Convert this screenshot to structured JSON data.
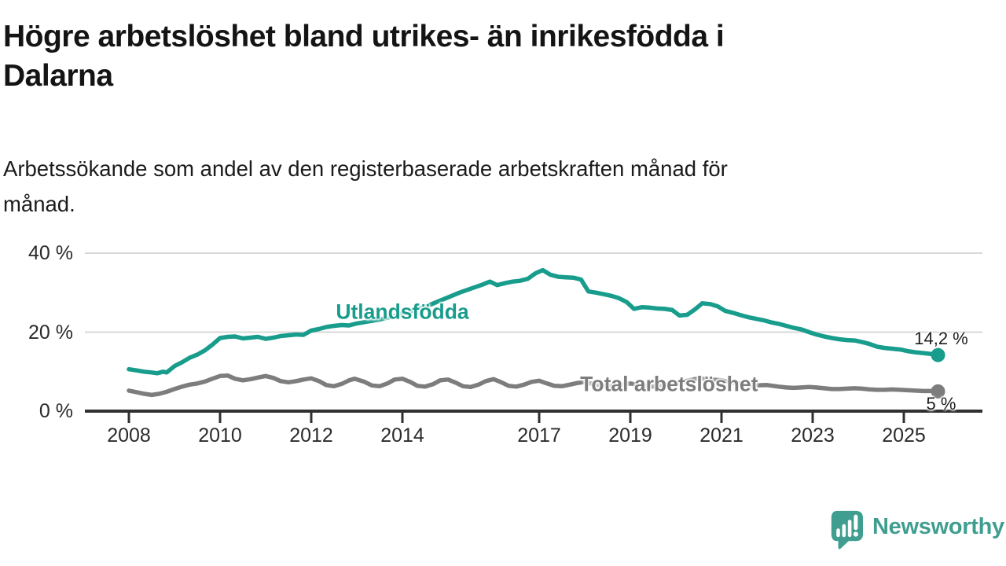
{
  "header": {
    "title_lines": [
      "Högre arbetslöshet bland utrikes- än inrikesfödda i",
      "Dalarna"
    ],
    "subtitle_lines": [
      "Arbetssökande som andel av den registerbaserade arbetskraften månad för",
      "månad."
    ]
  },
  "branding": {
    "logo_text": "Newsworthy",
    "logo_color": "#3f9e8f",
    "logo_icon": "speech-bubble-bar-chart-exclamation-icon"
  },
  "colors": {
    "background": "#ffffff",
    "axis": "#303030",
    "gridline": "#d8d8d8",
    "tick_label": "#2b2b2b",
    "teal": "#189c8c",
    "gray": "#7d7d7d"
  },
  "chart_data": {
    "type": "line",
    "title": "Högre arbetslöshet bland utrikes- än inrikesfödda i Dalarna",
    "subtitle": "Arbetssökande som andel av den registerbaserade arbetskraften månad för månad.",
    "unit": "%",
    "xlim": [
      2007.75,
      2026.1
    ],
    "ylim": [
      0,
      45
    ],
    "grid": "horizontal",
    "legend": "inline-labels",
    "y_ticks": [
      {
        "value": 0,
        "label": "0 %"
      },
      {
        "value": 20,
        "label": "20 %"
      },
      {
        "value": 40,
        "label": "40 %"
      }
    ],
    "x_ticks": [
      {
        "value": 2008,
        "label": "2008"
      },
      {
        "value": 2010,
        "label": "2010"
      },
      {
        "value": 2012,
        "label": "2012"
      },
      {
        "value": 2014,
        "label": "2014"
      },
      {
        "value": 2017,
        "label": "2017"
      },
      {
        "value": 2019,
        "label": "2019"
      },
      {
        "value": 2021,
        "label": "2021"
      },
      {
        "value": 2023,
        "label": "2023"
      },
      {
        "value": 2025,
        "label": "2025"
      }
    ],
    "series": [
      {
        "name": "Utlandsfödda",
        "color": "#189c8c",
        "end_label": "14,2 %",
        "end_value": 14.2,
        "label_pos": {
          "x": 2014.0,
          "y": 25.0
        },
        "end_label_offset": [
          4,
          -21
        ],
        "points": [
          [
            2008.0,
            10.6
          ],
          [
            2008.17,
            10.3
          ],
          [
            2008.33,
            10.0
          ],
          [
            2008.5,
            9.8
          ],
          [
            2008.62,
            9.6
          ],
          [
            2008.75,
            10.0
          ],
          [
            2008.83,
            9.8
          ],
          [
            2009.0,
            11.4
          ],
          [
            2009.17,
            12.4
          ],
          [
            2009.33,
            13.5
          ],
          [
            2009.5,
            14.3
          ],
          [
            2009.67,
            15.4
          ],
          [
            2009.83,
            16.8
          ],
          [
            2010.0,
            18.5
          ],
          [
            2010.17,
            18.8
          ],
          [
            2010.33,
            18.9
          ],
          [
            2010.5,
            18.4
          ],
          [
            2010.67,
            18.6
          ],
          [
            2010.83,
            18.8
          ],
          [
            2011.0,
            18.3
          ],
          [
            2011.17,
            18.6
          ],
          [
            2011.33,
            19.0
          ],
          [
            2011.5,
            19.2
          ],
          [
            2011.67,
            19.4
          ],
          [
            2011.83,
            19.3
          ],
          [
            2012.0,
            20.4
          ],
          [
            2012.17,
            20.8
          ],
          [
            2012.33,
            21.3
          ],
          [
            2012.5,
            21.6
          ],
          [
            2012.67,
            21.8
          ],
          [
            2012.83,
            21.7
          ],
          [
            2013.0,
            22.2
          ],
          [
            2013.25,
            22.7
          ],
          [
            2013.5,
            23.2
          ],
          [
            2013.75,
            23.9
          ],
          [
            2014.0,
            24.7
          ],
          [
            2014.25,
            25.5
          ],
          [
            2014.5,
            26.4
          ],
          [
            2014.75,
            27.6
          ],
          [
            2015.0,
            28.8
          ],
          [
            2015.25,
            30.0
          ],
          [
            2015.5,
            31.0
          ],
          [
            2015.75,
            32.0
          ],
          [
            2015.92,
            32.8
          ],
          [
            2016.08,
            31.9
          ],
          [
            2016.25,
            32.4
          ],
          [
            2016.42,
            32.8
          ],
          [
            2016.58,
            33.0
          ],
          [
            2016.75,
            33.5
          ],
          [
            2016.92,
            34.9
          ],
          [
            2017.08,
            35.7
          ],
          [
            2017.25,
            34.5
          ],
          [
            2017.42,
            34.0
          ],
          [
            2017.58,
            33.9
          ],
          [
            2017.75,
            33.8
          ],
          [
            2017.92,
            33.3
          ],
          [
            2018.08,
            30.3
          ],
          [
            2018.25,
            30.0
          ],
          [
            2018.42,
            29.6
          ],
          [
            2018.58,
            29.2
          ],
          [
            2018.75,
            28.6
          ],
          [
            2018.92,
            27.6
          ],
          [
            2019.08,
            25.9
          ],
          [
            2019.25,
            26.3
          ],
          [
            2019.42,
            26.2
          ],
          [
            2019.58,
            26.0
          ],
          [
            2019.75,
            25.9
          ],
          [
            2019.92,
            25.6
          ],
          [
            2020.08,
            24.2
          ],
          [
            2020.25,
            24.4
          ],
          [
            2020.42,
            25.8
          ],
          [
            2020.58,
            27.3
          ],
          [
            2020.75,
            27.1
          ],
          [
            2020.92,
            26.5
          ],
          [
            2021.08,
            25.4
          ],
          [
            2021.25,
            24.9
          ],
          [
            2021.42,
            24.3
          ],
          [
            2021.58,
            23.8
          ],
          [
            2021.75,
            23.4
          ],
          [
            2021.92,
            23.0
          ],
          [
            2022.08,
            22.5
          ],
          [
            2022.25,
            22.1
          ],
          [
            2022.42,
            21.6
          ],
          [
            2022.58,
            21.1
          ],
          [
            2022.75,
            20.7
          ],
          [
            2022.92,
            20.0
          ],
          [
            2023.08,
            19.4
          ],
          [
            2023.25,
            18.9
          ],
          [
            2023.42,
            18.5
          ],
          [
            2023.58,
            18.2
          ],
          [
            2023.75,
            18.0
          ],
          [
            2023.92,
            17.9
          ],
          [
            2024.08,
            17.5
          ],
          [
            2024.25,
            17.0
          ],
          [
            2024.42,
            16.3
          ],
          [
            2024.58,
            16.0
          ],
          [
            2024.75,
            15.8
          ],
          [
            2024.92,
            15.6
          ],
          [
            2025.08,
            15.2
          ],
          [
            2025.25,
            14.9
          ],
          [
            2025.42,
            14.7
          ],
          [
            2025.58,
            14.5
          ],
          [
            2025.75,
            14.2
          ]
        ]
      },
      {
        "name": "Total arbetslöshet",
        "color": "#7d7d7d",
        "end_label": "5 %",
        "end_value": 5.0,
        "label_pos": {
          "x": 2019.85,
          "y": 6.8
        },
        "end_label_offset": [
          4,
          16
        ],
        "points": [
          [
            2008.0,
            5.2
          ],
          [
            2008.17,
            4.8
          ],
          [
            2008.33,
            4.4
          ],
          [
            2008.5,
            4.1
          ],
          [
            2008.67,
            4.4
          ],
          [
            2008.83,
            4.9
          ],
          [
            2009.0,
            5.6
          ],
          [
            2009.17,
            6.2
          ],
          [
            2009.33,
            6.7
          ],
          [
            2009.5,
            7.0
          ],
          [
            2009.67,
            7.5
          ],
          [
            2009.83,
            8.2
          ],
          [
            2010.0,
            8.9
          ],
          [
            2010.17,
            9.0
          ],
          [
            2010.33,
            8.2
          ],
          [
            2010.5,
            7.8
          ],
          [
            2010.67,
            8.1
          ],
          [
            2010.83,
            8.5
          ],
          [
            2011.0,
            8.9
          ],
          [
            2011.17,
            8.4
          ],
          [
            2011.33,
            7.6
          ],
          [
            2011.5,
            7.3
          ],
          [
            2011.67,
            7.6
          ],
          [
            2011.83,
            8.0
          ],
          [
            2012.0,
            8.3
          ],
          [
            2012.17,
            7.6
          ],
          [
            2012.33,
            6.6
          ],
          [
            2012.5,
            6.3
          ],
          [
            2012.67,
            6.9
          ],
          [
            2012.83,
            7.8
          ],
          [
            2012.95,
            8.2
          ],
          [
            2013.17,
            7.4
          ],
          [
            2013.33,
            6.5
          ],
          [
            2013.5,
            6.3
          ],
          [
            2013.67,
            7.0
          ],
          [
            2013.83,
            8.0
          ],
          [
            2014.0,
            8.2
          ],
          [
            2014.17,
            7.4
          ],
          [
            2014.33,
            6.4
          ],
          [
            2014.5,
            6.2
          ],
          [
            2014.67,
            6.8
          ],
          [
            2014.83,
            7.8
          ],
          [
            2015.0,
            8.0
          ],
          [
            2015.17,
            7.2
          ],
          [
            2015.33,
            6.3
          ],
          [
            2015.5,
            6.1
          ],
          [
            2015.67,
            6.7
          ],
          [
            2015.83,
            7.6
          ],
          [
            2016.0,
            8.1
          ],
          [
            2016.17,
            7.3
          ],
          [
            2016.33,
            6.4
          ],
          [
            2016.5,
            6.2
          ],
          [
            2016.67,
            6.7
          ],
          [
            2016.83,
            7.4
          ],
          [
            2017.0,
            7.7
          ],
          [
            2017.17,
            7.0
          ],
          [
            2017.33,
            6.4
          ],
          [
            2017.5,
            6.3
          ],
          [
            2017.67,
            6.7
          ],
          [
            2017.83,
            7.1
          ],
          [
            2018.0,
            7.4
          ],
          [
            2018.25,
            6.7
          ],
          [
            2018.5,
            6.3
          ],
          [
            2018.75,
            6.6
          ],
          [
            2019.0,
            7.0
          ],
          [
            2019.25,
            6.5
          ],
          [
            2019.5,
            6.2
          ],
          [
            2019.75,
            6.5
          ],
          [
            2020.0,
            7.0
          ],
          [
            2020.25,
            7.7
          ],
          [
            2020.5,
            8.3
          ],
          [
            2020.75,
            8.0
          ],
          [
            2021.0,
            7.8
          ],
          [
            2021.25,
            7.2
          ],
          [
            2021.5,
            6.8
          ],
          [
            2021.75,
            6.5
          ],
          [
            2022.0,
            6.6
          ],
          [
            2022.25,
            6.2
          ],
          [
            2022.42,
            6.0
          ],
          [
            2022.58,
            5.9
          ],
          [
            2022.75,
            6.0
          ],
          [
            2022.92,
            6.1
          ],
          [
            2023.08,
            6.0
          ],
          [
            2023.25,
            5.8
          ],
          [
            2023.42,
            5.6
          ],
          [
            2023.58,
            5.6
          ],
          [
            2023.75,
            5.7
          ],
          [
            2023.92,
            5.8
          ],
          [
            2024.08,
            5.7
          ],
          [
            2024.25,
            5.5
          ],
          [
            2024.42,
            5.4
          ],
          [
            2024.58,
            5.4
          ],
          [
            2024.75,
            5.5
          ],
          [
            2024.92,
            5.4
          ],
          [
            2025.08,
            5.3
          ],
          [
            2025.25,
            5.2
          ],
          [
            2025.42,
            5.1
          ],
          [
            2025.58,
            5.1
          ],
          [
            2025.75,
            5.0
          ]
        ]
      }
    ]
  }
}
